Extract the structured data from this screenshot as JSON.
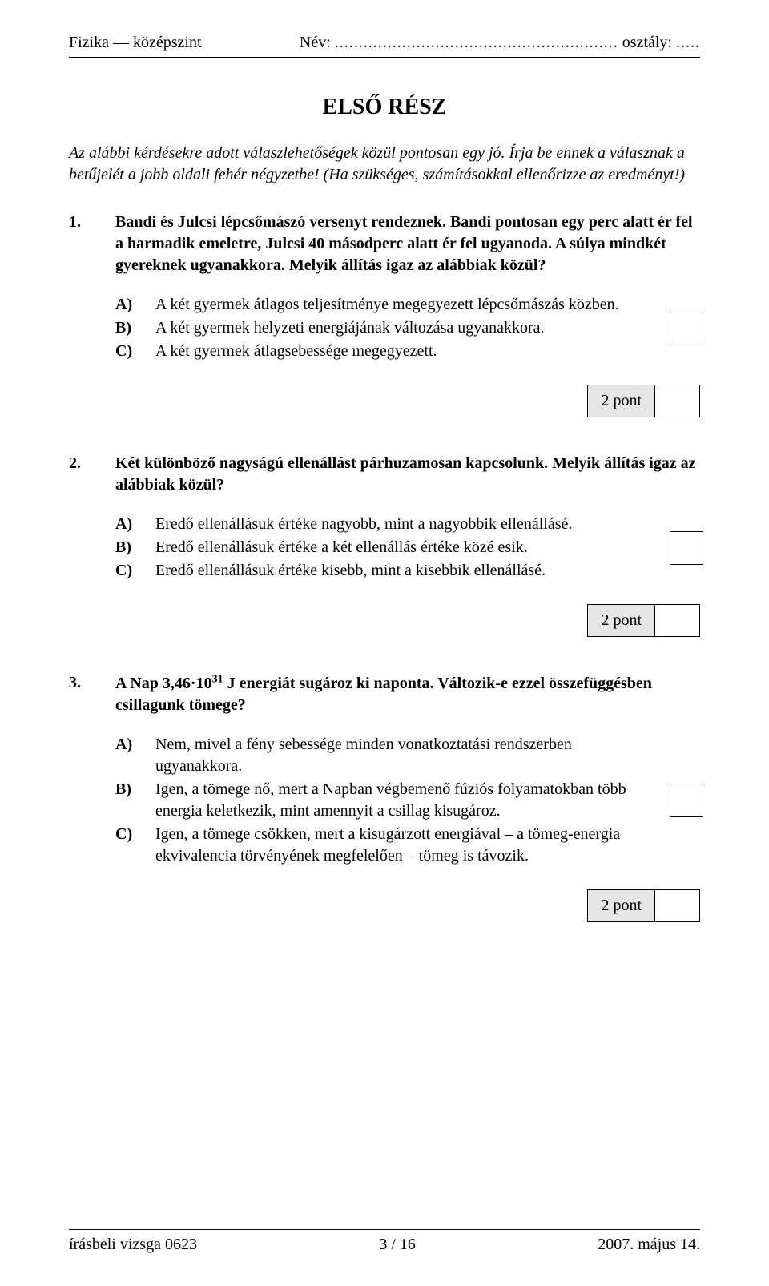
{
  "header": {
    "subject_level": "Fizika — középszint",
    "name_label": "Név:",
    "name_dots": "...........................................................",
    "class_label": "osztály:",
    "class_dots": "....."
  },
  "section_title": "ELSŐ RÉSZ",
  "intro_text": "Az alábbi kérdésekre adott válaszlehetőségek közül pontosan egy jó. Írja be ennek a válasznak a betűjelét a jobb oldali fehér négyzetbe! (Ha szükséges, számításokkal ellenőrizze az eredményt!)",
  "questions": [
    {
      "number": "1.",
      "stem": "Bandi és Julcsi lépcsőmászó versenyt rendeznek. Bandi pontosan egy perc alatt ér fel a harmadik emeletre, Julcsi 40 másodperc alatt ér fel ugyanoda. A súlya mindkét gyereknek ugyanakkora. Melyik állítás igaz az alábbiak közül?",
      "options": [
        {
          "label": "A)",
          "text": "A két gyermek átlagos teljesítménye megegyezett lépcsőmászás közben."
        },
        {
          "label": "B)",
          "text": "A két gyermek helyzeti energiájának változása ugyanakkora."
        },
        {
          "label": "C)",
          "text": "A két gyermek átlagsebessége megegyezett."
        }
      ],
      "points_label": "2 pont"
    },
    {
      "number": "2.",
      "stem": "Két különböző nagyságú ellenállást párhuzamosan kapcsolunk. Melyik állítás igaz az alábbiak közül?",
      "options": [
        {
          "label": "A)",
          "text": "Eredő ellenállásuk értéke nagyobb, mint a nagyobbik ellenállásé."
        },
        {
          "label": "B)",
          "text": "Eredő ellenállásuk értéke a két ellenállás értéke közé esik."
        },
        {
          "label": "C)",
          "text": "Eredő ellenállásuk értéke kisebb, mint a kisebbik ellenállásé."
        }
      ],
      "points_label": "2 pont"
    },
    {
      "number": "3.",
      "stem_prefix": "A Nap ",
      "stem_value": "3,46·10",
      "stem_exp": "31",
      "stem_unit": " J",
      "stem_suffix": " energiát sugároz ki naponta. Változik-e ezzel összefüggésben csillagunk tömege?",
      "options": [
        {
          "label": "A)",
          "text": "Nem, mivel a fény sebessége minden vonatkoztatási rendszerben ugyanakkora."
        },
        {
          "label": "B)",
          "text": "Igen, a tömege nő, mert a Napban végbemenő fúziós folyamatokban több energia keletkezik, mint amennyit a csillag kisugároz."
        },
        {
          "label": "C)",
          "text": "Igen, a tömege csökken, mert a kisugárzott energiával – a tömeg-energia ekvivalencia törvényének megfelelően – tömeg is távozik."
        }
      ],
      "points_label": "2 pont"
    }
  ],
  "footer": {
    "left": "írásbeli vizsga 0623",
    "center": "3 / 16",
    "right": "2007. május 14."
  }
}
